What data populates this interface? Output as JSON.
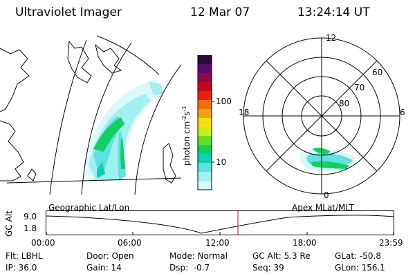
{
  "header": {
    "title": "Ultraviolet Imager",
    "date": "12 Mar 07",
    "time": "13:24:14 UT"
  },
  "colorbar": {
    "unit_label": "photon cm",
    "unit_exp1": "-2",
    "unit_mid": "s",
    "unit_exp2": "-1",
    "ticks": [
      "100",
      "10"
    ],
    "colors": [
      "#2a0a3a",
      "#5a0a6a",
      "#8a0a4a",
      "#c00a1a",
      "#e82010",
      "#f07010",
      "#f5a010",
      "#f5e010",
      "#c8f010",
      "#60e020",
      "#10d060",
      "#10d0b0",
      "#60e0e0",
      "#a0f0f0",
      "#d8f8f8"
    ]
  },
  "left_panel": {
    "label": "Geographic Lat/Lon"
  },
  "polar": {
    "mlt_labels": {
      "top": "12",
      "left": "18",
      "right": "6",
      "bottom": "0"
    },
    "lat_labels": [
      "60",
      "70",
      "80"
    ],
    "label": "Apex MLat/MLT"
  },
  "altitude_plot": {
    "ylabel": "GC Alt",
    "y_ticks": [
      "9.0",
      "1.8"
    ],
    "x_ticks": [
      "00:00",
      "06:00",
      "12:00",
      "18:00",
      "23:59"
    ],
    "marker_color": "#dd0000"
  },
  "info": {
    "row1": {
      "filter": "Flt: LBHL",
      "door": "Door: Open",
      "mode": "Mode: Normal",
      "gc_alt": "GC Alt: 5.3 Re",
      "glat": "GLat: -50.8"
    },
    "row2": {
      "ip": "IP: 36.0",
      "gain": "Gain: 14",
      "dsp": "Dsp:  -0.7",
      "seq": "Seq: 39",
      "glon": "GLon: 156.1"
    }
  }
}
